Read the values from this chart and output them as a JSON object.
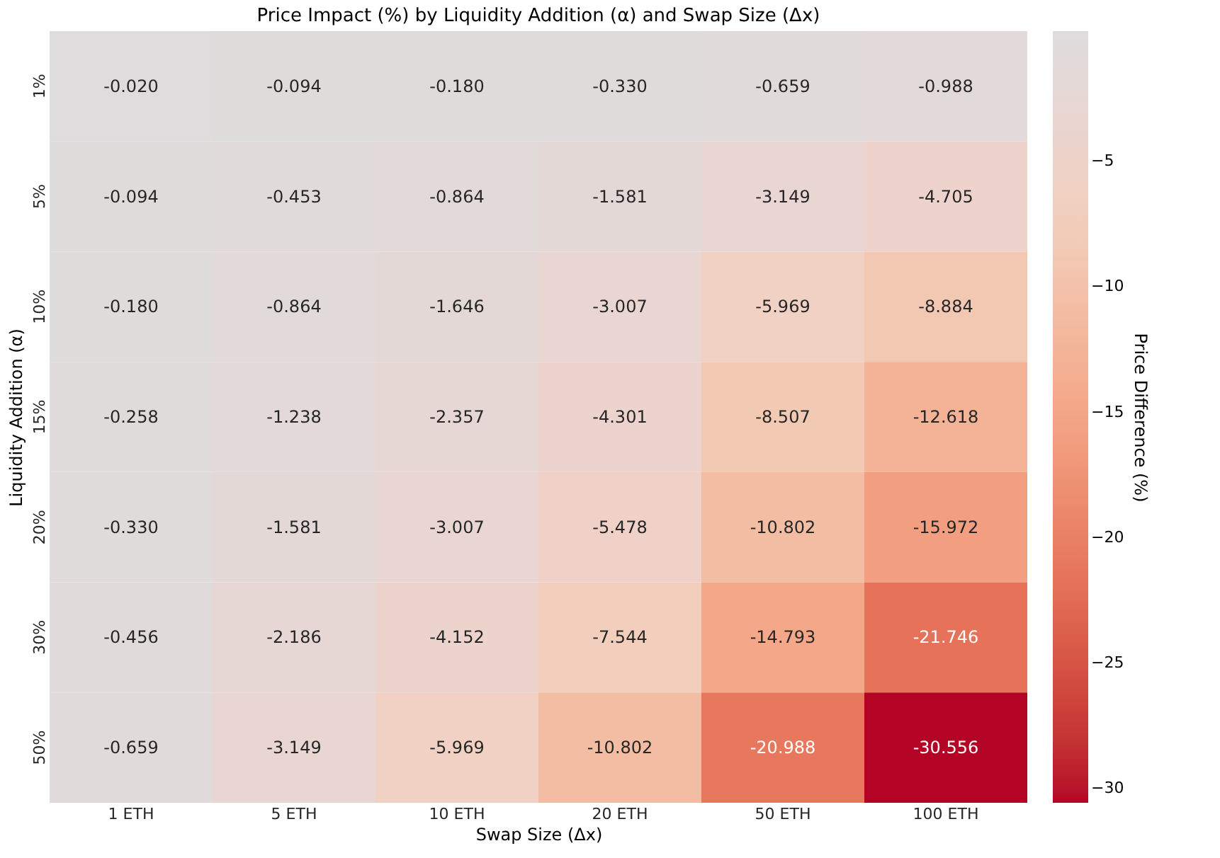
{
  "chart_data": {
    "type": "heatmap",
    "title": "Price Impact (%) by Liquidity Addition (α) and Swap Size (Δx)",
    "xlabel": "Swap Size (Δx)",
    "ylabel": "Liquidity Addition (α)",
    "clabel": "Price Difference (%)",
    "categories": [
      "1 ETH",
      "5 ETH",
      "10 ETH",
      "20 ETH",
      "50 ETH",
      "100 ETH"
    ],
    "y_categories": [
      "1%",
      "5%",
      "10%",
      "15%",
      "20%",
      "30%",
      "50%"
    ],
    "cells": [
      [
        -0.02,
        -0.094,
        -0.18,
        -0.33,
        -0.659,
        -0.988
      ],
      [
        -0.094,
        -0.453,
        -0.864,
        -1.581,
        -3.149,
        -4.705
      ],
      [
        -0.18,
        -0.864,
        -1.646,
        -3.007,
        -5.969,
        -8.884
      ],
      [
        -0.258,
        -1.238,
        -2.357,
        -4.301,
        -8.507,
        -12.618
      ],
      [
        -0.33,
        -1.581,
        -3.007,
        -5.478,
        -10.802,
        -15.972
      ],
      [
        -0.456,
        -2.186,
        -4.152,
        -7.544,
        -14.793,
        -21.746
      ],
      [
        -0.659,
        -3.149,
        -5.969,
        -10.802,
        -20.988,
        -30.556
      ]
    ],
    "cell_labels": [
      [
        "-0.020",
        "-0.094",
        "-0.180",
        "-0.330",
        "-0.659",
        "-0.988"
      ],
      [
        "-0.094",
        "-0.453",
        "-0.864",
        "-1.581",
        "-3.149",
        "-4.705"
      ],
      [
        "-0.180",
        "-0.864",
        "-1.646",
        "-3.007",
        "-5.969",
        "-8.884"
      ],
      [
        "-0.258",
        "-1.238",
        "-2.357",
        "-4.301",
        "-8.507",
        "-12.618"
      ],
      [
        "-0.330",
        "-1.581",
        "-3.007",
        "-5.478",
        "-10.802",
        "-15.972"
      ],
      [
        "-0.456",
        "-2.186",
        "-4.152",
        "-7.544",
        "-14.793",
        "-21.746"
      ],
      [
        "-0.659",
        "-3.149",
        "-5.969",
        "-10.802",
        "-20.988",
        "-30.556"
      ]
    ],
    "clim": [
      -30.556,
      0.2
    ],
    "cticks": [
      -30,
      -25,
      -20,
      -15,
      -10,
      -5
    ],
    "grid": false
  }
}
